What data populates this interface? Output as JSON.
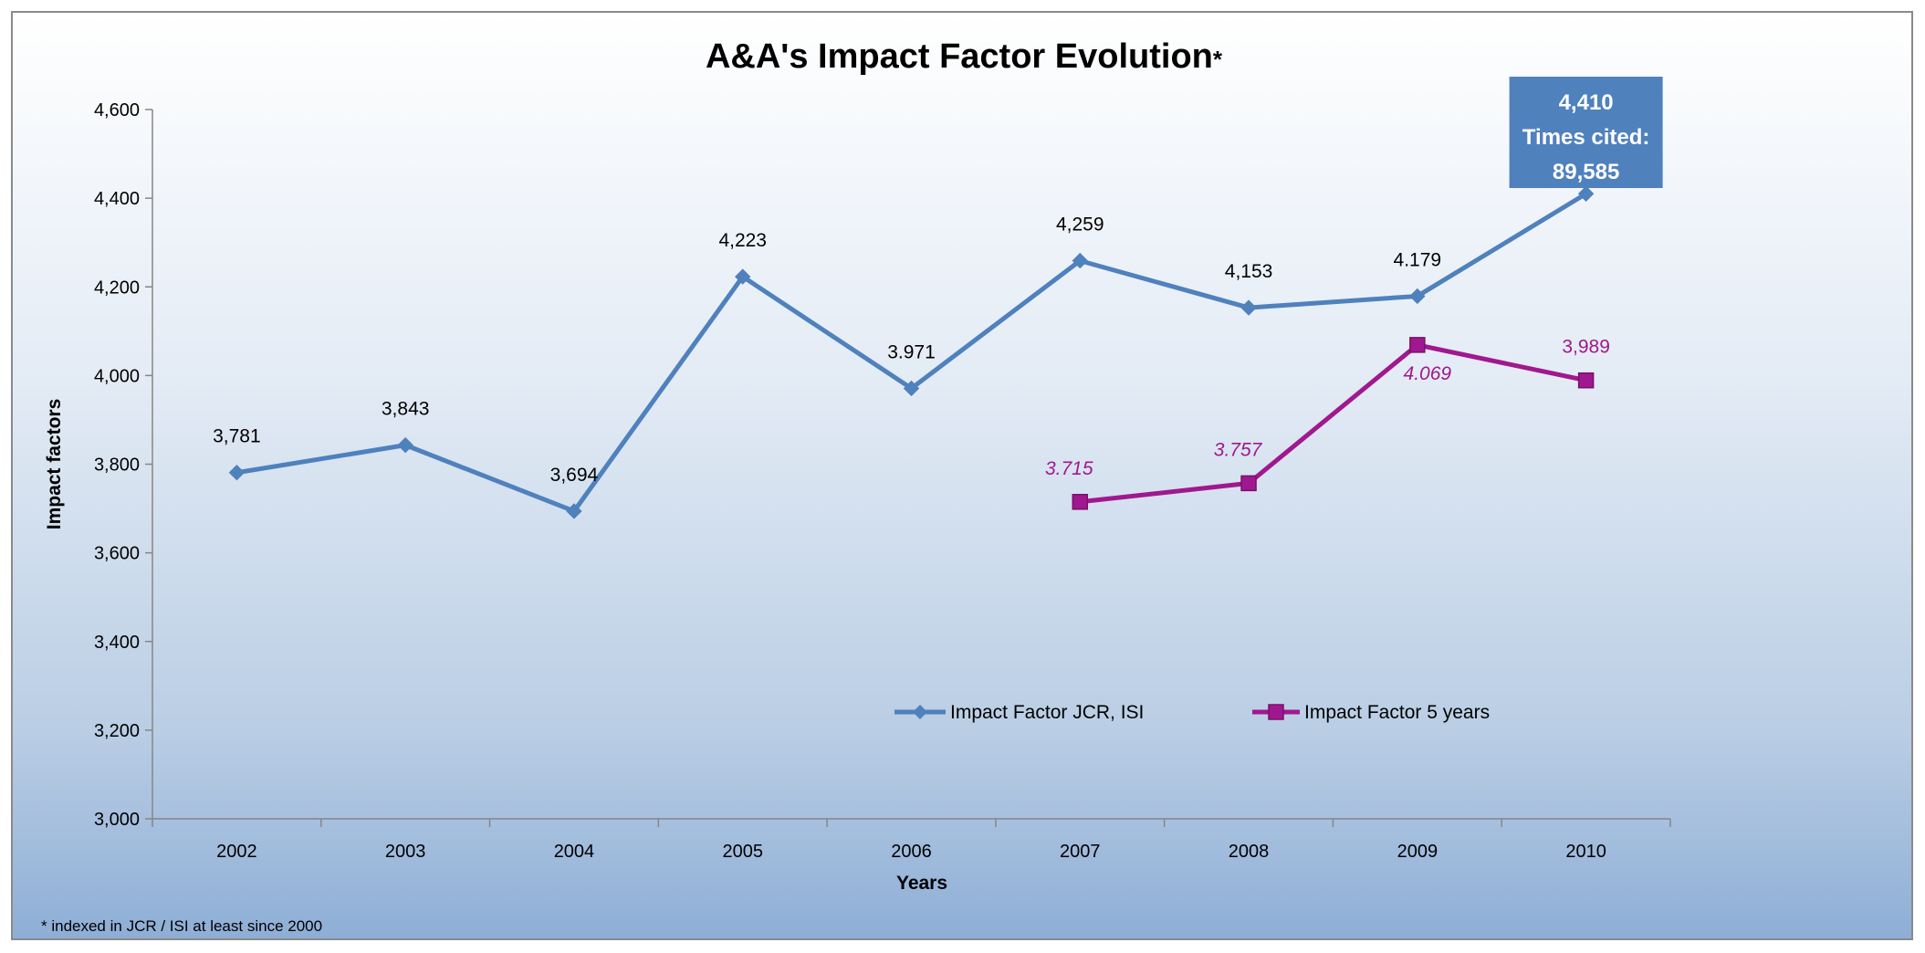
{
  "chart_data": {
    "type": "line",
    "title": "A&A's Impact Factor Evolution",
    "title_mark": "*",
    "xlabel": "Years",
    "ylabel": "Impact factors",
    "ylim": [
      3000,
      4600
    ],
    "y_ticks": [
      3000,
      3200,
      3400,
      3600,
      3800,
      4000,
      4200,
      4400,
      4600
    ],
    "y_tick_labels": [
      "3,000",
      "3,200",
      "3,400",
      "3,600",
      "3,800",
      "4,000",
      "4,200",
      "4,400",
      "4,600"
    ],
    "categories": [
      "2002",
      "2003",
      "2004",
      "2005",
      "2006",
      "2007",
      "2008",
      "2009",
      "2010"
    ],
    "grid": false,
    "legend_position": "bottom-center",
    "series": [
      {
        "name": "Impact Factor JCR, ISI",
        "color": "#4f81bd",
        "marker": "diamond",
        "values": [
          3781,
          3843,
          3694,
          4223,
          3971,
          4259,
          4153,
          4179,
          4410
        ],
        "labels": [
          "3,781",
          "3,843",
          "3,694",
          "4,223",
          "3.971",
          "4,259",
          "4,153",
          "4.179",
          null
        ]
      },
      {
        "name": "Impact Factor 5 years",
        "color": "#a0188f",
        "marker": "square",
        "values": [
          null,
          null,
          null,
          null,
          null,
          3715,
          3757,
          4069,
          3989
        ],
        "labels": [
          null,
          null,
          null,
          null,
          null,
          "3.715",
          "3.757",
          "4.069",
          "3,989"
        ]
      }
    ],
    "callout": {
      "lines": [
        "4,410",
        "Times cited:",
        "89,585"
      ],
      "fill": "#4f81bd",
      "text_color": "#ffffff"
    },
    "footnote": "* indexed  in JCR / ISI at least since 2000"
  }
}
